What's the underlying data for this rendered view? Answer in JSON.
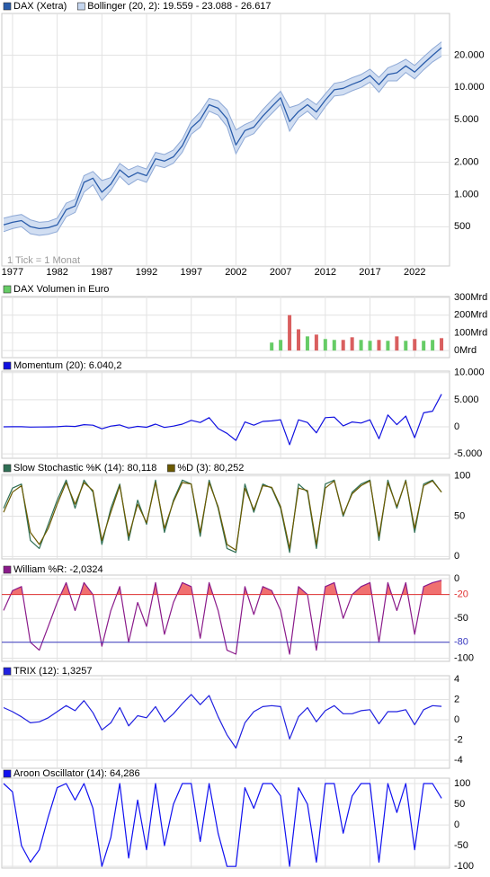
{
  "chart_data": [
    {
      "type": "line",
      "log_scale": true,
      "annotation": "1 Tick = 1 Monat",
      "xlim": [
        1975.8,
        2025.9
      ],
      "xticks": [
        1977,
        1982,
        1987,
        1992,
        1997,
        2002,
        2007,
        2012,
        2017,
        2022
      ],
      "ylim": [
        215,
        49000
      ],
      "yticks": [
        500,
        {
          "value": 1000,
          "label": "1.000"
        },
        {
          "value": 2000,
          "label": "2.000"
        },
        {
          "value": 5000,
          "label": "5.000"
        },
        {
          "value": 10000,
          "label": "10.000"
        },
        {
          "value": 20000,
          "label": "20.000"
        }
      ],
      "x": [
        1976,
        1977,
        1978,
        1979,
        1980,
        1981,
        1982,
        1983,
        1984,
        1985,
        1986,
        1987,
        1988,
        1989,
        1990,
        1991,
        1992,
        1993,
        1994,
        1995,
        1996,
        1997,
        1998,
        1999,
        2000,
        2001,
        2002,
        2003,
        2004,
        2005,
        2006,
        2007,
        2008,
        2009,
        2010,
        2011,
        2012,
        2013,
        2014,
        2015,
        2016,
        2017,
        2018,
        2019,
        2020,
        2021,
        2022,
        2023,
        2024,
        2025
      ],
      "series": [
        {
          "name": "DAX (Xetra)",
          "color": "#2a5caa",
          "values": [
            520,
            550,
            570,
            500,
            480,
            490,
            520,
            720,
            780,
            1300,
            1420,
            1050,
            1250,
            1700,
            1450,
            1600,
            1500,
            2150,
            2050,
            2250,
            2850,
            4200,
            5000,
            6900,
            6400,
            5100,
            2900,
            3950,
            4250,
            5400,
            6600,
            8000,
            4800,
            5950,
            6900,
            5900,
            7600,
            9500,
            9800,
            10700,
            11500,
            12900,
            10600,
            13200,
            13700,
            15900,
            13900,
            16750,
            19900,
            23500
          ]
        },
        {
          "name": "Bollinger (20, 2): 19.559 - 23.088 - 26.617",
          "type": "band",
          "color": "#c5d6ef",
          "upper": [
            600,
            630,
            650,
            580,
            550,
            560,
            600,
            830,
            900,
            1500,
            1640,
            1350,
            1440,
            1950,
            1700,
            1850,
            1730,
            2470,
            2360,
            2600,
            3280,
            4830,
            5900,
            7900,
            7500,
            6200,
            4000,
            4500,
            4900,
            6200,
            7600,
            9200,
            6500,
            6900,
            7900,
            6900,
            8700,
            10900,
            11300,
            12300,
            13200,
            14800,
            12400,
            15200,
            16500,
            18300,
            16000,
            19300,
            22900,
            26600
          ],
          "lower": [
            450,
            480,
            500,
            430,
            415,
            425,
            450,
            620,
            680,
            1050,
            1230,
            880,
            1090,
            1480,
            1230,
            1390,
            1300,
            1870,
            1780,
            1960,
            2480,
            3650,
            4250,
            6000,
            5500,
            4300,
            2400,
            3400,
            3700,
            4700,
            5700,
            6950,
            3900,
            5200,
            6000,
            5000,
            6600,
            8300,
            8500,
            9300,
            10000,
            11200,
            9000,
            11500,
            11500,
            13800,
            12000,
            14600,
            17300,
            19560
          ]
        }
      ]
    },
    {
      "type": "bar",
      "xlim": [
        1975.8,
        2025.9
      ],
      "ylim": [
        -40,
        305
      ],
      "yticks": [
        {
          "value": 300,
          "label": "300Mrd"
        },
        {
          "value": 200,
          "label": "200Mrd"
        },
        {
          "value": 100,
          "label": "100Mrd"
        },
        {
          "value": 0,
          "label": "0Mrd"
        }
      ],
      "x": [
        2006,
        2007,
        2008,
        2009,
        2010,
        2011,
        2012,
        2013,
        2014,
        2015,
        2016,
        2017,
        2018,
        2019,
        2020,
        2021,
        2022,
        2023,
        2024,
        2025
      ],
      "series": [
        {
          "name": "DAX Volumen in Euro",
          "color": "#66cc66",
          "values": [
            45,
            60,
            200,
            120,
            80,
            90,
            65,
            60,
            60,
            75,
            60,
            55,
            60,
            55,
            80,
            55,
            65,
            55,
            60,
            70
          ],
          "colors": [
            "#66cc66",
            "#66cc66",
            "#d95f5f",
            "#d95f5f",
            "#66cc66",
            "#d95f5f",
            "#66cc66",
            "#66cc66",
            "#d95f5f",
            "#d95f5f",
            "#66cc66",
            "#66cc66",
            "#d95f5f",
            "#66cc66",
            "#d95f5f",
            "#66cc66",
            "#d95f5f",
            "#66cc66",
            "#66cc66",
            "#d95f5f"
          ]
        }
      ]
    },
    {
      "type": "line",
      "xlim": [
        1975.8,
        2025.9
      ],
      "ylim": [
        -5800,
        10300
      ],
      "yticks": [
        {
          "value": 10000,
          "label": "10.000"
        },
        {
          "value": 5000,
          "label": "5.000"
        },
        0,
        {
          "value": -5000,
          "label": "-5.000"
        }
      ],
      "x": [
        1976,
        1977,
        1978,
        1979,
        1980,
        1981,
        1982,
        1983,
        1984,
        1985,
        1986,
        1987,
        1988,
        1989,
        1990,
        1991,
        1992,
        1993,
        1994,
        1995,
        1996,
        1997,
        1998,
        1999,
        2000,
        2001,
        2002,
        2003,
        2004,
        2005,
        2006,
        2007,
        2008,
        2009,
        2010,
        2011,
        2012,
        2013,
        2014,
        2015,
        2016,
        2017,
        2018,
        2019,
        2020,
        2021,
        2022,
        2023,
        2024,
        2025
      ],
      "series": [
        {
          "name": "Momentum (20): 6.040,2",
          "color": "#1010e0",
          "values": [
            10,
            20,
            30,
            -40,
            -30,
            0,
            20,
            150,
            80,
            400,
            300,
            -350,
            150,
            350,
            -200,
            100,
            -80,
            500,
            -100,
            150,
            500,
            1200,
            800,
            1700,
            -300,
            -1200,
            -2500,
            900,
            300,
            1000,
            1100,
            1300,
            -3300,
            1300,
            800,
            -1100,
            1700,
            1800,
            200,
            900,
            700,
            1300,
            -2200,
            2200,
            400,
            2000,
            -2000,
            2600,
            2900,
            6040
          ]
        }
      ]
    },
    {
      "type": "line",
      "xlim": [
        1975.8,
        2025.9
      ],
      "ylim": [
        -3,
        102
      ],
      "yticks": [
        100,
        50,
        0
      ],
      "x": [
        1976,
        1977,
        1978,
        1979,
        1980,
        1981,
        1982,
        1983,
        1984,
        1985,
        1986,
        1987,
        1988,
        1989,
        1990,
        1991,
        1992,
        1993,
        1994,
        1995,
        1996,
        1997,
        1998,
        1999,
        2000,
        2001,
        2002,
        2003,
        2004,
        2005,
        2006,
        2007,
        2008,
        2009,
        2010,
        2011,
        2012,
        2013,
        2014,
        2015,
        2016,
        2017,
        2018,
        2019,
        2020,
        2021,
        2022,
        2023,
        2024,
        2025
      ],
      "series": [
        {
          "name": "Slow Stochastic %K (14): 80,118",
          "color": "#2f6f55",
          "values": [
            60,
            85,
            90,
            20,
            10,
            40,
            70,
            95,
            60,
            95,
            80,
            15,
            60,
            90,
            20,
            70,
            40,
            95,
            30,
            70,
            95,
            90,
            25,
            95,
            60,
            10,
            5,
            90,
            55,
            90,
            85,
            60,
            5,
            90,
            80,
            10,
            90,
            95,
            50,
            80,
            90,
            95,
            20,
            95,
            60,
            95,
            30,
            90,
            95,
            80
          ]
        },
        {
          "name": "%D (3): 80,252",
          "color": "#6b5a00",
          "values": [
            55,
            80,
            88,
            30,
            15,
            35,
            65,
            92,
            65,
            92,
            82,
            20,
            55,
            88,
            25,
            65,
            42,
            92,
            35,
            68,
            92,
            90,
            30,
            92,
            62,
            15,
            8,
            85,
            58,
            88,
            86,
            62,
            10,
            85,
            82,
            15,
            85,
            94,
            52,
            78,
            88,
            94,
            25,
            92,
            62,
            94,
            35,
            88,
            94,
            80
          ]
        }
      ]
    },
    {
      "type": "line",
      "xlim": [
        1975.8,
        2025.9
      ],
      "ylim": [
        -104,
        4.5
      ],
      "yticks": [
        0,
        -20,
        -50,
        -80,
        -100
      ],
      "levels": [
        {
          "value": -20,
          "color": "#e03030",
          "fill": "#f07070"
        },
        {
          "value": -80,
          "color": "#3a3ac0"
        }
      ],
      "x": [
        1976,
        1977,
        1978,
        1979,
        1980,
        1981,
        1982,
        1983,
        1984,
        1985,
        1986,
        1987,
        1988,
        1989,
        1990,
        1991,
        1992,
        1993,
        1994,
        1995,
        1996,
        1997,
        1998,
        1999,
        2000,
        2001,
        2002,
        2003,
        2004,
        2005,
        2006,
        2007,
        2008,
        2009,
        2010,
        2011,
        2012,
        2013,
        2014,
        2015,
        2016,
        2017,
        2018,
        2019,
        2020,
        2021,
        2022,
        2023,
        2024,
        2025
      ],
      "series": [
        {
          "name": "William %R: -2,0324",
          "color": "#8a1a8a",
          "values": [
            -40,
            -15,
            -10,
            -80,
            -90,
            -60,
            -30,
            -5,
            -40,
            -5,
            -20,
            -85,
            -40,
            -10,
            -80,
            -30,
            -60,
            -5,
            -70,
            -30,
            -5,
            -10,
            -75,
            -5,
            -40,
            -90,
            -95,
            -10,
            -45,
            -10,
            -15,
            -40,
            -95,
            -10,
            -20,
            -90,
            -10,
            -5,
            -50,
            -20,
            -10,
            -5,
            -80,
            -5,
            -40,
            -5,
            -70,
            -10,
            -5,
            -2.0324
          ]
        }
      ]
    },
    {
      "type": "line",
      "xlim": [
        1975.8,
        2025.9
      ],
      "ylim": [
        -4.8,
        4.36
      ],
      "yticks": [
        4,
        2,
        0,
        -2,
        -4
      ],
      "x": [
        1976,
        1977,
        1978,
        1979,
        1980,
        1981,
        1982,
        1983,
        1984,
        1985,
        1986,
        1987,
        1988,
        1989,
        1990,
        1991,
        1992,
        1993,
        1994,
        1995,
        1996,
        1997,
        1998,
        1999,
        2000,
        2001,
        2002,
        2003,
        2004,
        2005,
        2006,
        2007,
        2008,
        2009,
        2010,
        2011,
        2012,
        2013,
        2014,
        2015,
        2016,
        2017,
        2018,
        2019,
        2020,
        2021,
        2022,
        2023,
        2024,
        2025
      ],
      "series": [
        {
          "name": "TRIX (12): 1,3257",
          "color": "#2020e0",
          "values": [
            1.2,
            0.8,
            0.3,
            -0.3,
            -0.2,
            0.2,
            0.8,
            1.4,
            0.9,
            1.9,
            0.7,
            -1.0,
            -0.3,
            1.2,
            -0.6,
            0.4,
            0.2,
            1.3,
            -0.2,
            0.6,
            1.6,
            2.5,
            1.5,
            2.4,
            0.3,
            -1.5,
            -2.8,
            -0.3,
            0.8,
            1.3,
            1.4,
            1.3,
            -1.9,
            0.3,
            1.2,
            -0.2,
            0.9,
            1.4,
            0.6,
            0.6,
            0.9,
            1.0,
            -0.4,
            0.8,
            0.8,
            1.0,
            -0.5,
            1.0,
            1.4,
            1.3257
          ]
        }
      ]
    },
    {
      "type": "line",
      "xlim": [
        1975.8,
        2025.9
      ],
      "ylim": [
        -104,
        113
      ],
      "yticks": [
        100,
        50,
        0,
        -50,
        -100
      ],
      "x": [
        1976,
        1977,
        1978,
        1979,
        1980,
        1981,
        1982,
        1983,
        1984,
        1985,
        1986,
        1987,
        1988,
        1989,
        1990,
        1991,
        1992,
        1993,
        1994,
        1995,
        1996,
        1997,
        1998,
        1999,
        2000,
        2001,
        2002,
        2003,
        2004,
        2005,
        2006,
        2007,
        2008,
        2009,
        2010,
        2011,
        2012,
        2013,
        2014,
        2015,
        2016,
        2017,
        2018,
        2019,
        2020,
        2021,
        2022,
        2023,
        2024,
        2025
      ],
      "series": [
        {
          "name": "Aroon Oscillator (14): 64,286",
          "color": "#1010f0",
          "values": [
            100,
            80,
            -50,
            -90,
            -60,
            20,
            90,
            100,
            60,
            100,
            40,
            -100,
            -30,
            100,
            -80,
            60,
            -60,
            100,
            -50,
            50,
            100,
            100,
            -40,
            100,
            -20,
            -100,
            -100,
            90,
            40,
            100,
            100,
            70,
            -100,
            90,
            50,
            -90,
            100,
            100,
            -20,
            70,
            100,
            100,
            -90,
            100,
            30,
            100,
            -60,
            100,
            100,
            64.286
          ]
        }
      ]
    }
  ]
}
